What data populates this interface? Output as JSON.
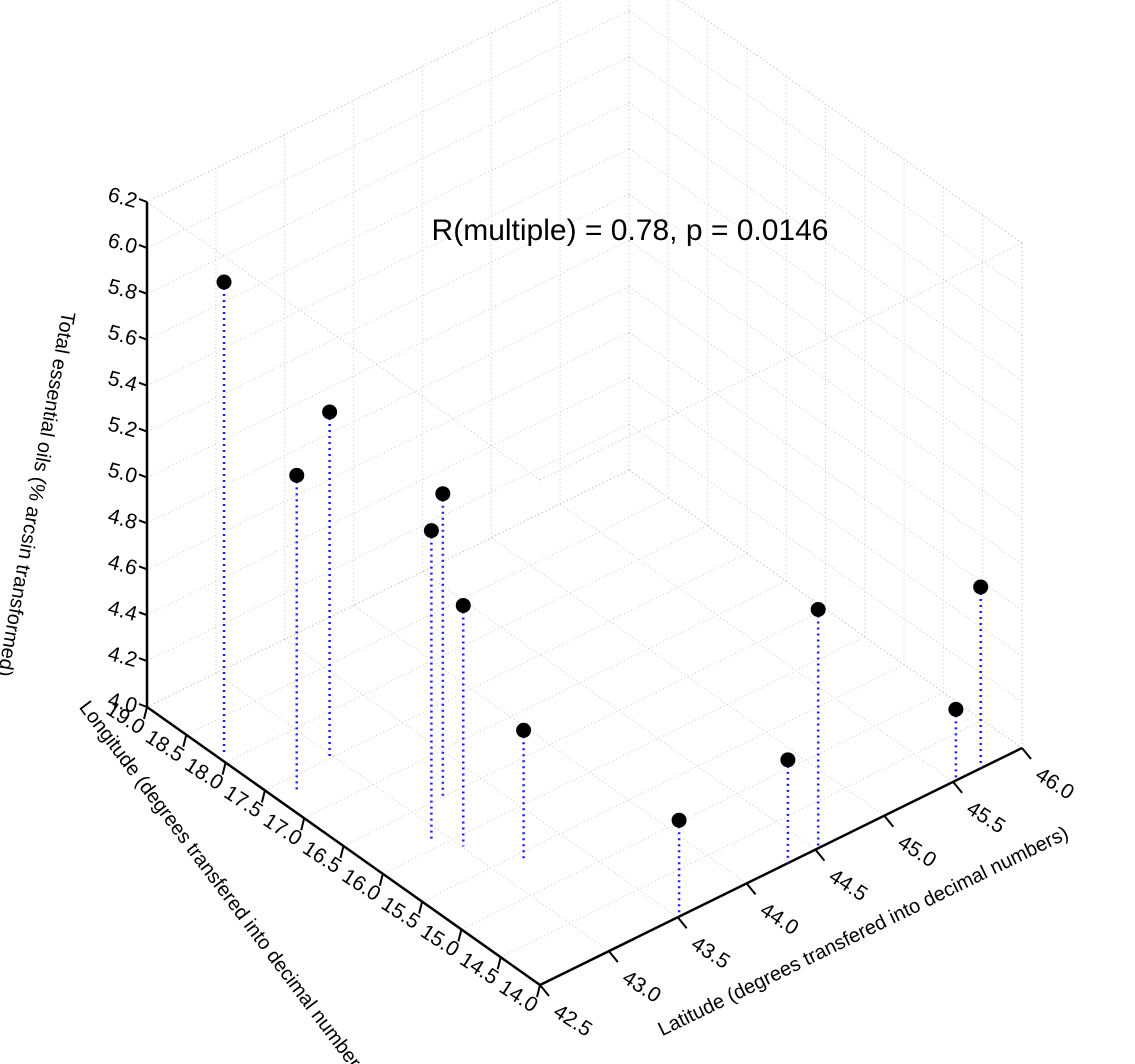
{
  "chart_data": {
    "type": "scatter",
    "annotation": "R(multiple) = 0.78, p = 0.0146",
    "xlabel": "Latitude (degrees transfered into decimal numbers)",
    "ylabel": "Longitude (degrees transfered into decimal numbers)",
    "zlabel": "Total essential oils (% arcsin transformed)",
    "xlim": [
      42.5,
      46.0
    ],
    "ylim": [
      14.0,
      19.0
    ],
    "zlim": [
      4.0,
      6.2
    ],
    "x_ticks": [
      "42.5",
      "43.0",
      "43.5",
      "44.0",
      "44.5",
      "45.0",
      "45.5",
      "46.0"
    ],
    "y_ticks": [
      "14.0",
      "14.5",
      "15.0",
      "15.5",
      "16.0",
      "16.5",
      "17.0",
      "17.5",
      "18.0",
      "18.5",
      "19.0"
    ],
    "z_ticks": [
      "4.0",
      "4.2",
      "4.4",
      "4.6",
      "4.8",
      "5.0",
      "5.2",
      "5.4",
      "5.6",
      "5.8",
      "6.0",
      "6.2"
    ],
    "grid": true,
    "drop_lines": true,
    "points": [
      {
        "x": 42.54,
        "y": 18.09,
        "z": 6.06
      },
      {
        "x": 42.64,
        "y": 17.34,
        "z": 5.37
      },
      {
        "x": 42.97,
        "y": 17.5,
        "z": 5.51
      },
      {
        "x": 43.21,
        "y": 16.48,
        "z": 5.33
      },
      {
        "x": 42.91,
        "y": 16.1,
        "z": 5.35
      },
      {
        "x": 43.01,
        "y": 15.87,
        "z": 5.05
      },
      {
        "x": 43.18,
        "y": 15.4,
        "z": 4.57
      },
      {
        "x": 43.51,
        "y": 14.0,
        "z": 4.42
      },
      {
        "x": 44.3,
        "y": 14.0,
        "z": 4.45
      },
      {
        "x": 44.52,
        "y": 14.0,
        "z": 5.04
      },
      {
        "x": 45.52,
        "y": 14.0,
        "z": 4.31
      },
      {
        "x": 45.7,
        "y": 14.0,
        "z": 4.79
      }
    ]
  }
}
